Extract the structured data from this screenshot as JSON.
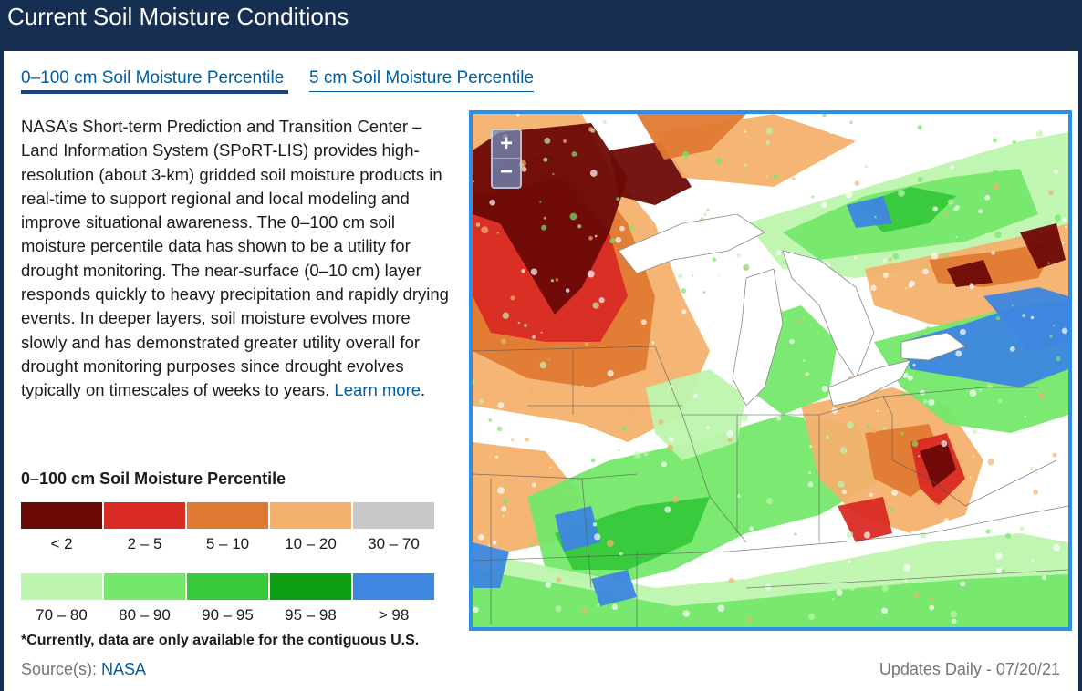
{
  "header": {
    "title": "Current Soil Moisture Conditions"
  },
  "tabs": [
    {
      "label": "0–100 cm Soil Moisture Percentile",
      "active": true
    },
    {
      "label": "5 cm Soil Moisture Percentile",
      "active": false
    }
  ],
  "description": {
    "text": "NASA’s Short-term Prediction and Transition Center – Land Information System (SPoRT-LIS) provides high-resolution (about 3-km) gridded soil moisture products in real-time to support regional and local modeling and improve situational awareness. The 0–100 cm soil moisture percentile data has shown to be a utility for drought monitoring. The near-surface (0–10 cm) layer responds quickly to heavy precipitation and rapidly drying events. In deeper layers, soil moisture evolves more slowly and has demonstrated greater utility overall for drought monitoring purposes since drought evolves typically on timescales of weeks to years.",
    "link_text": "Learn more",
    "after_link": "."
  },
  "legend": {
    "title": "0–100 cm Soil Moisture Percentile",
    "items": [
      {
        "label": "< 2",
        "color": "#6b0a07"
      },
      {
        "label": "2 – 5",
        "color": "#d92b24"
      },
      {
        "label": "5 – 10",
        "color": "#e07a33"
      },
      {
        "label": "10 – 20",
        "color": "#f4b16e"
      },
      {
        "label": "30 – 70",
        "color": "#c8c8c8"
      },
      {
        "label": "70 – 80",
        "color": "#bdf5ae"
      },
      {
        "label": "80 – 90",
        "color": "#74e86a"
      },
      {
        "label": "90 – 95",
        "color": "#36c93a"
      },
      {
        "label": "95 – 98",
        "color": "#0e9e14"
      },
      {
        "label": "> 98",
        "color": "#3e86e0"
      }
    ]
  },
  "note": "*Currently, data are only available for the contiguous U.S.",
  "source": {
    "label": "Source(s):",
    "link": "NASA"
  },
  "updates": "Updates Daily  -  07/20/21",
  "map": {
    "zoom_in": "+",
    "zoom_out": "−",
    "lake_color": "#ffffff",
    "border_color": "#555555"
  }
}
